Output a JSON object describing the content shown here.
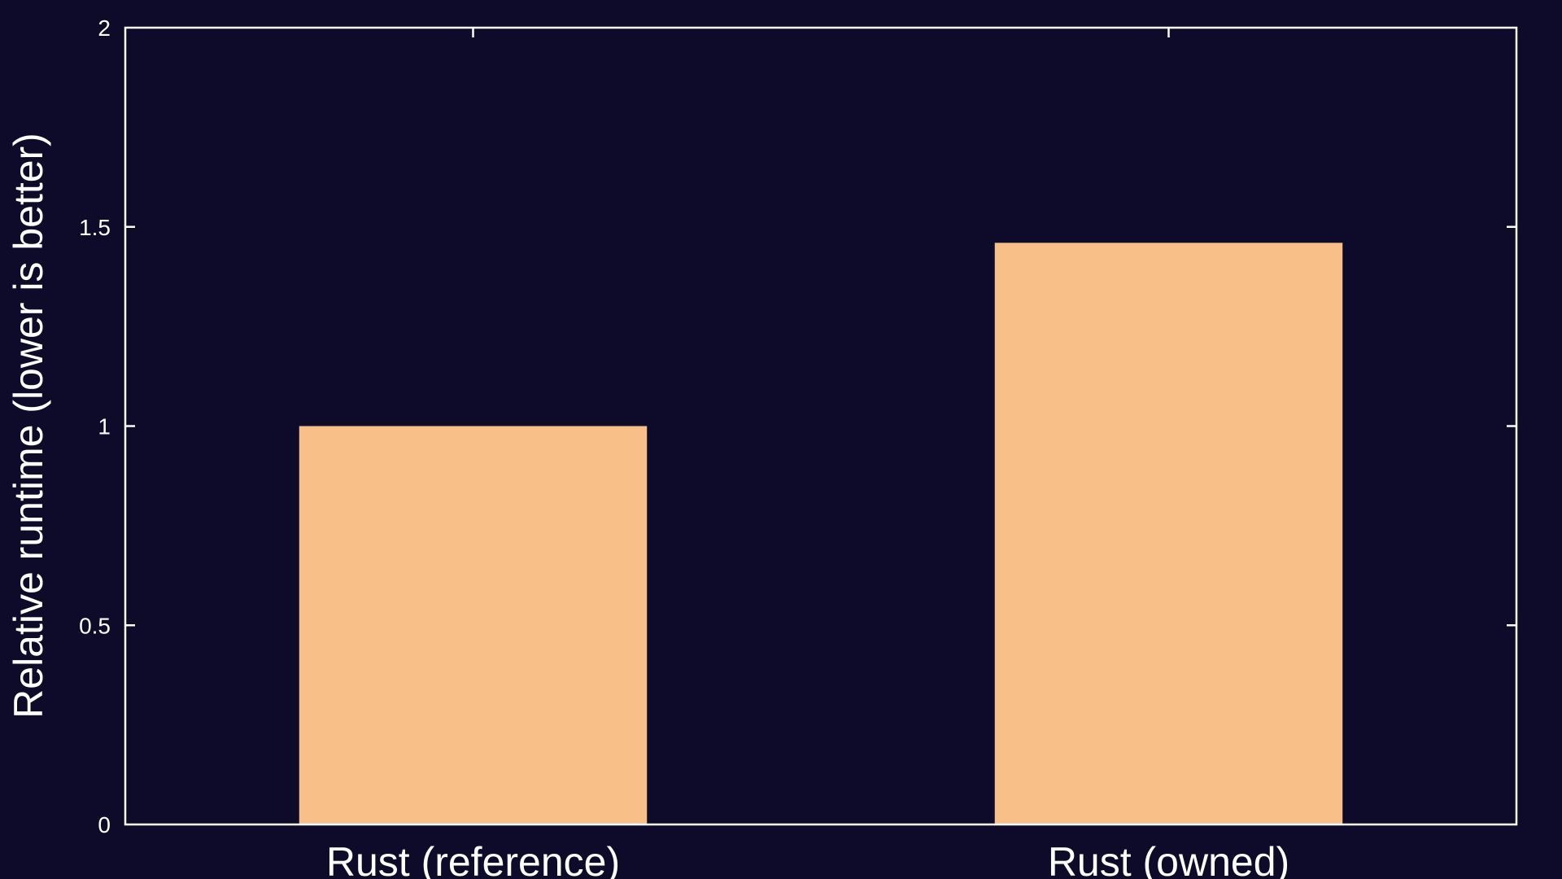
{
  "chart_data": {
    "type": "bar",
    "title": "",
    "xlabel": "",
    "ylabel": "Relative runtime (lower is better)",
    "categories": [
      "Rust (reference)",
      "Rust (owned)"
    ],
    "values": [
      1.0,
      1.46
    ],
    "ylim": [
      0,
      2
    ],
    "yticks": [
      0,
      0.5,
      1,
      1.5,
      2
    ],
    "ytick_labels": [
      "0",
      "0.5",
      "1",
      "1.5",
      "2"
    ],
    "grid": false,
    "legend": "none",
    "colors": {
      "background": "#0e0b2a",
      "bar": "#f9bf88",
      "axis": "#ffffff",
      "text": "#ffffff"
    }
  }
}
